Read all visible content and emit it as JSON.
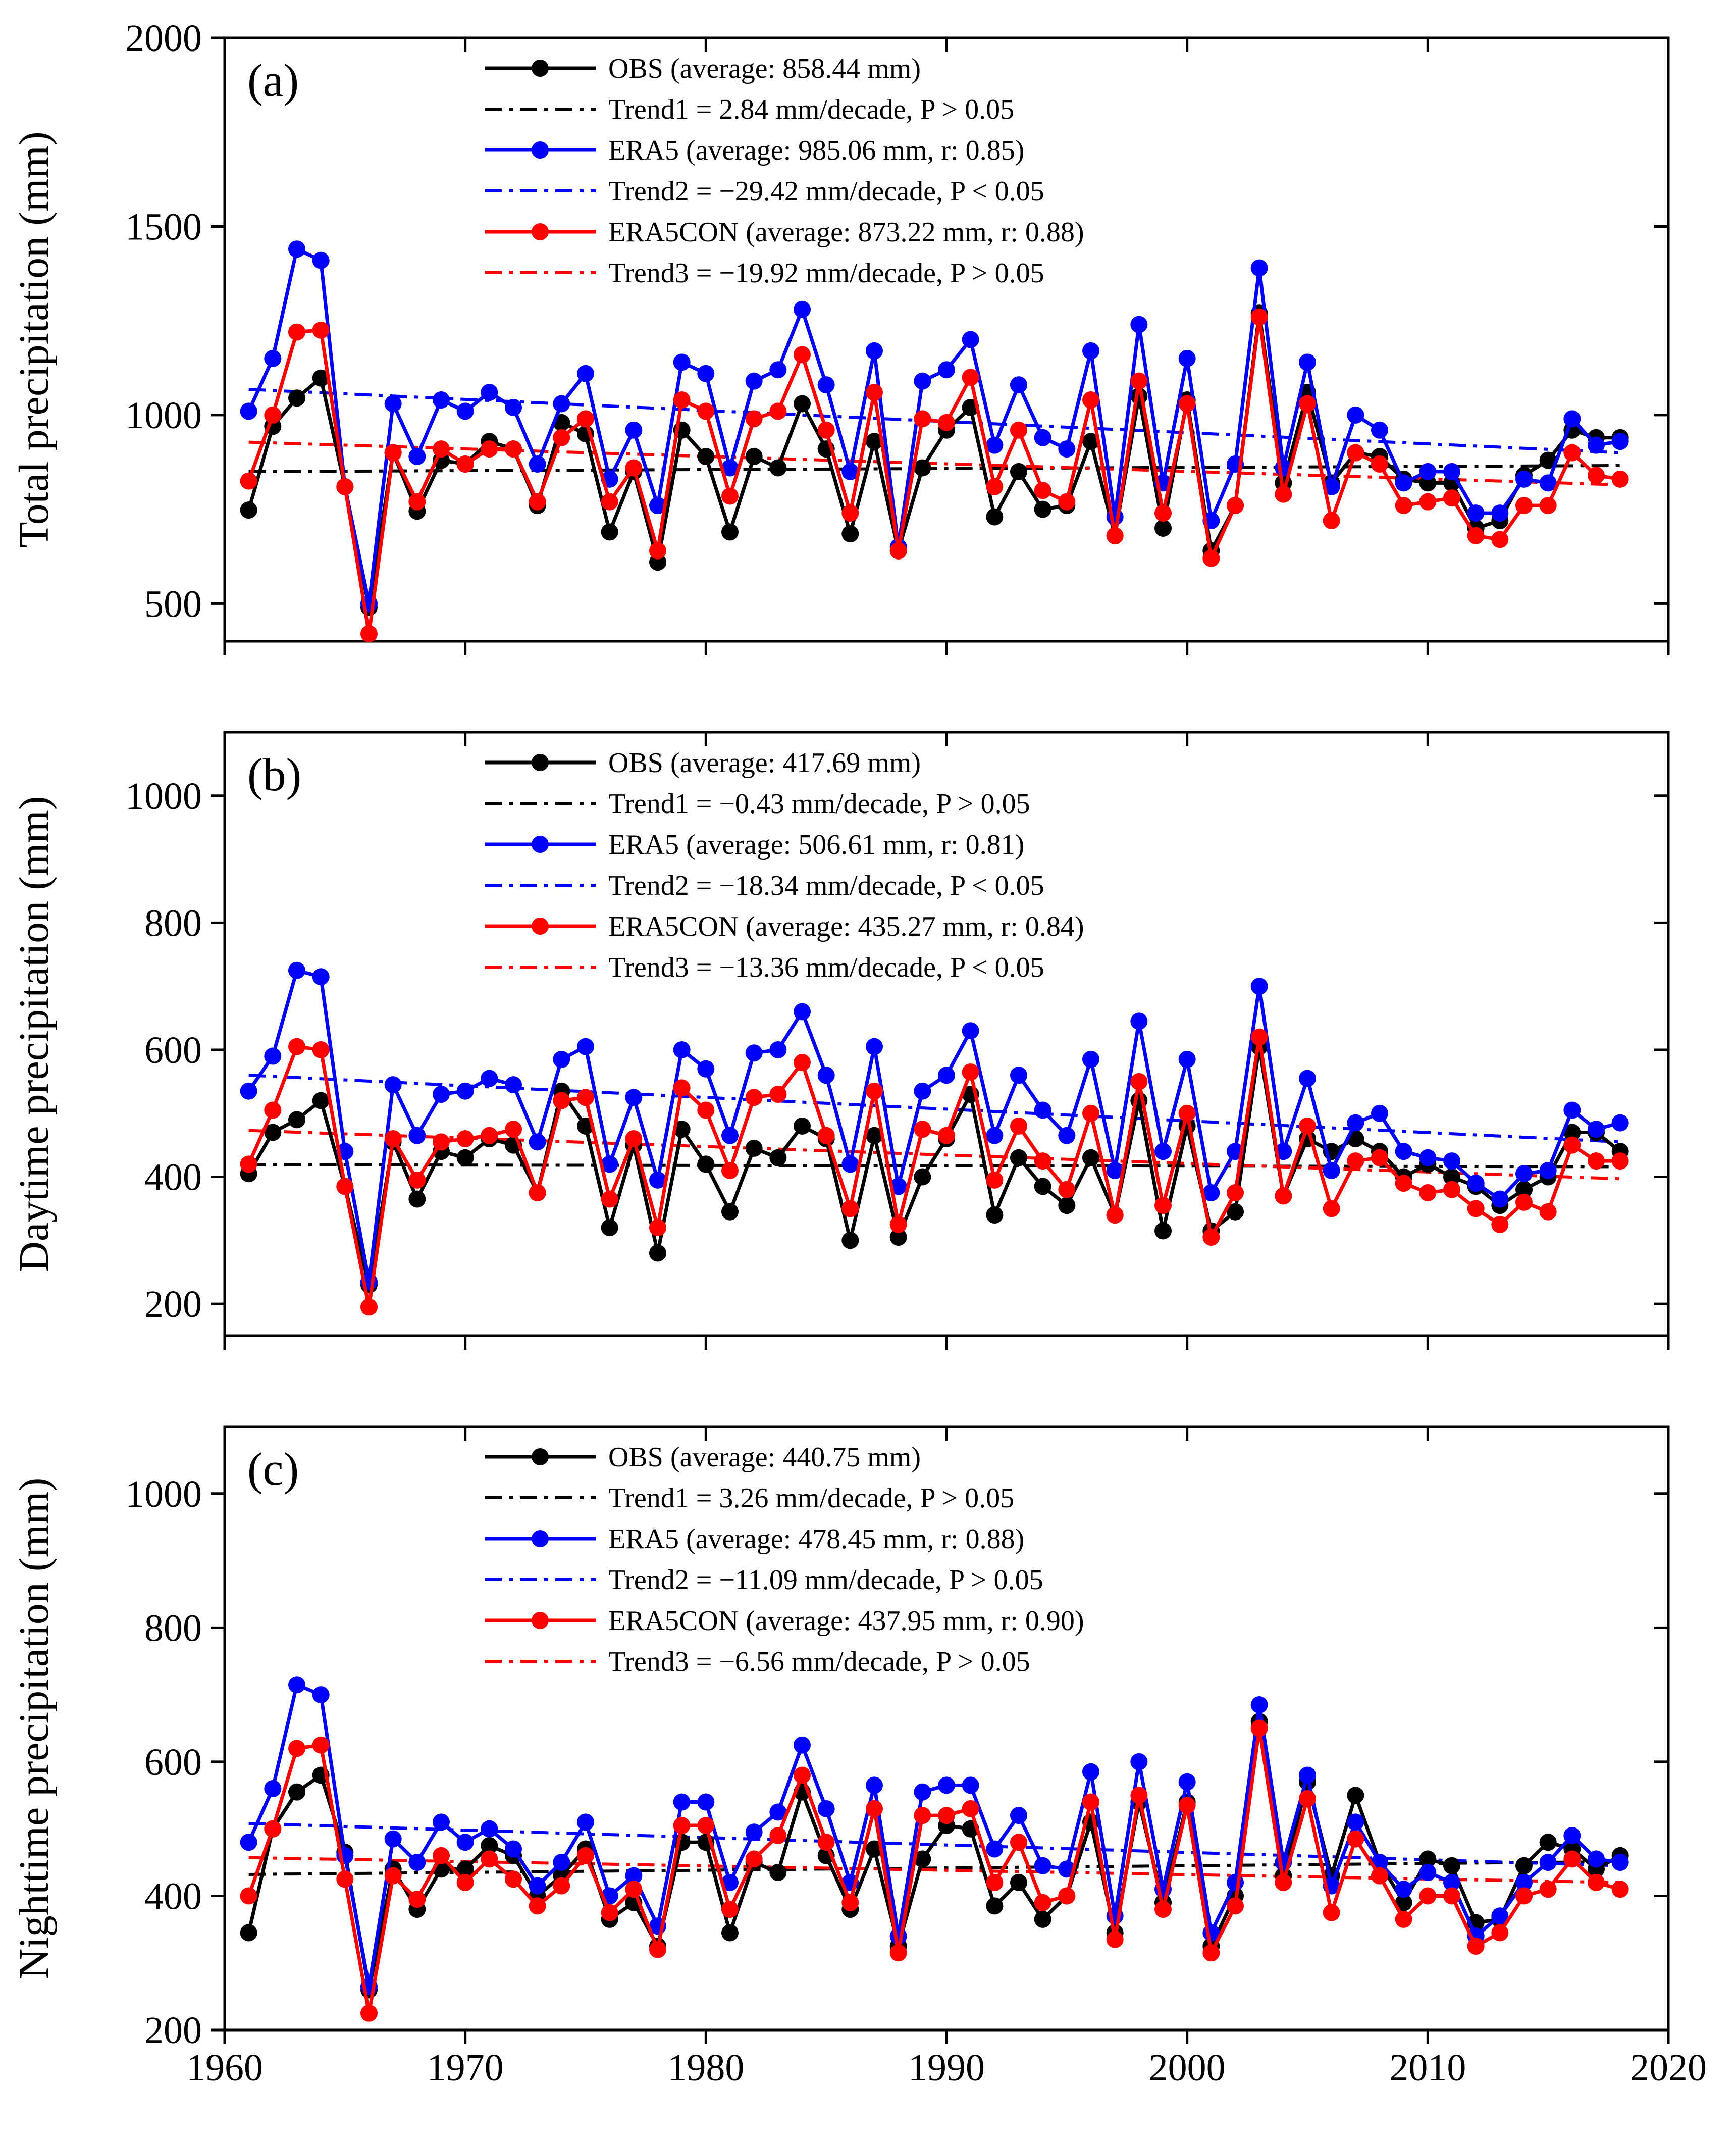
{
  "figure": {
    "xticks": [
      1960,
      1970,
      1980,
      1990,
      2000,
      2010,
      2020
    ],
    "colors": {
      "obs": "#000000",
      "era5": "#0000ff",
      "era5con": "#ff0000"
    }
  },
  "chart_data": [
    {
      "type": "line",
      "panel_label": "(a)",
      "ylabel": "Total precipitation (mm)",
      "xlim": [
        1960,
        2020
      ],
      "ylim": [
        400,
        2000
      ],
      "yticks": [
        500,
        1000,
        1500,
        2000
      ],
      "legend_position": "top",
      "x": [
        1961,
        1962,
        1963,
        1964,
        1965,
        1966,
        1967,
        1968,
        1969,
        1970,
        1971,
        1972,
        1973,
        1974,
        1975,
        1976,
        1977,
        1978,
        1979,
        1980,
        1981,
        1982,
        1983,
        1984,
        1985,
        1986,
        1987,
        1988,
        1989,
        1990,
        1991,
        1992,
        1993,
        1994,
        1995,
        1996,
        1997,
        1998,
        1999,
        2000,
        2001,
        2002,
        2003,
        2004,
        2005,
        2006,
        2007,
        2008,
        2009,
        2010,
        2011,
        2012,
        2013,
        2014,
        2015,
        2016,
        2017,
        2018
      ],
      "series": [
        {
          "name": "OBS (average: 858.44 mm)",
          "color": "#000000",
          "values": [
            748,
            970,
            1045,
            1098,
            810,
            490,
            900,
            745,
            880,
            870,
            930,
            910,
            760,
            980,
            950,
            690,
            850,
            610,
            960,
            890,
            690,
            890,
            860,
            1030,
            910,
            685,
            930,
            640,
            860,
            960,
            1020,
            730,
            850,
            750,
            760,
            930,
            680,
            1050,
            700,
            1040,
            640,
            760,
            1270,
            820,
            1060,
            820,
            900,
            890,
            830,
            820,
            820,
            700,
            720,
            840,
            880,
            960,
            940,
            940
          ]
        },
        {
          "name": "ERA5 (average: 985.06 mm, r: 0.85)",
          "color": "#0000ff",
          "values": [
            1010,
            1150,
            1440,
            1410,
            810,
            500,
            1030,
            890,
            1040,
            1010,
            1060,
            1020,
            870,
            1030,
            1110,
            830,
            960,
            760,
            1140,
            1110,
            860,
            1090,
            1120,
            1280,
            1080,
            850,
            1170,
            650,
            1090,
            1120,
            1200,
            920,
            1080,
            940,
            910,
            1170,
            730,
            1240,
            820,
            1150,
            720,
            870,
            1390,
            860,
            1140,
            810,
            1000,
            960,
            820,
            850,
            850,
            740,
            740,
            830,
            820,
            990,
            920,
            930
          ]
        },
        {
          "name": "ERA5CON (average: 873.22 mm, r: 0.88)",
          "color": "#ff0000",
          "values": [
            825,
            1000,
            1220,
            1225,
            810,
            420,
            900,
            770,
            910,
            870,
            910,
            910,
            770,
            940,
            990,
            770,
            860,
            640,
            1040,
            1010,
            785,
            990,
            1010,
            1160,
            960,
            740,
            1060,
            640,
            990,
            980,
            1100,
            810,
            960,
            800,
            770,
            1040,
            680,
            1090,
            740,
            1030,
            620,
            760,
            1260,
            790,
            1030,
            720,
            900,
            870,
            760,
            770,
            780,
            680,
            670,
            760,
            760,
            900,
            840,
            830
          ]
        }
      ],
      "trends": [
        {
          "name": "Trend1 = 2.84 mm/decade, P > 0.05",
          "color": "#000000",
          "x": [
            1961,
            2018
          ],
          "y": [
            850,
            866
          ]
        },
        {
          "name": "Trend2 = −29.42 mm/decade, P < 0.05",
          "color": "#0000ff",
          "x": [
            1961,
            2018
          ],
          "y": [
            1068,
            900
          ]
        },
        {
          "name": "Trend3 = −19.92 mm/decade, P > 0.05",
          "color": "#ff0000",
          "x": [
            1961,
            2018
          ],
          "y": [
            928,
            815
          ]
        }
      ]
    },
    {
      "type": "line",
      "panel_label": "(b)",
      "ylabel": "Daytime precipitation (mm)",
      "xlim": [
        1960,
        2020
      ],
      "ylim": [
        150,
        1100
      ],
      "yticks": [
        200,
        400,
        600,
        800,
        1000
      ],
      "legend_position": "top",
      "x": [
        1961,
        1962,
        1963,
        1964,
        1965,
        1966,
        1967,
        1968,
        1969,
        1970,
        1971,
        1972,
        1973,
        1974,
        1975,
        1976,
        1977,
        1978,
        1979,
        1980,
        1981,
        1982,
        1983,
        1984,
        1985,
        1986,
        1987,
        1988,
        1989,
        1990,
        1991,
        1992,
        1993,
        1994,
        1995,
        1996,
        1997,
        1998,
        1999,
        2000,
        2001,
        2002,
        2003,
        2004,
        2005,
        2006,
        2007,
        2008,
        2009,
        2010,
        2011,
        2012,
        2013,
        2014,
        2015,
        2016,
        2017,
        2018
      ],
      "series": [
        {
          "name": "OBS (average: 417.69 mm)",
          "color": "#000000",
          "values": [
            405,
            470,
            490,
            520,
            385,
            230,
            455,
            365,
            440,
            430,
            460,
            450,
            375,
            535,
            480,
            320,
            450,
            280,
            475,
            420,
            345,
            445,
            430,
            480,
            460,
            300,
            465,
            305,
            400,
            460,
            530,
            340,
            430,
            385,
            355,
            430,
            340,
            520,
            315,
            480,
            315,
            345,
            605,
            370,
            460,
            440,
            460,
            440,
            400,
            420,
            400,
            385,
            355,
            380,
            400,
            470,
            470,
            440
          ]
        },
        {
          "name": "ERA5 (average: 506.61 mm, r: 0.81)",
          "color": "#0000ff",
          "values": [
            535,
            590,
            725,
            715,
            440,
            235,
            545,
            465,
            530,
            535,
            555,
            545,
            455,
            585,
            605,
            420,
            525,
            395,
            600,
            570,
            465,
            595,
            600,
            660,
            560,
            420,
            605,
            385,
            535,
            560,
            630,
            465,
            560,
            505,
            465,
            585,
            410,
            645,
            440,
            585,
            375,
            440,
            700,
            440,
            555,
            410,
            485,
            500,
            440,
            430,
            425,
            390,
            365,
            405,
            410,
            505,
            475,
            485
          ]
        },
        {
          "name": "ERA5CON (average: 435.27 mm, r: 0.84)",
          "color": "#ff0000",
          "values": [
            420,
            505,
            605,
            600,
            385,
            195,
            460,
            395,
            455,
            460,
            465,
            475,
            375,
            520,
            525,
            365,
            460,
            320,
            540,
            505,
            410,
            525,
            530,
            580,
            465,
            350,
            535,
            325,
            475,
            465,
            565,
            395,
            480,
            425,
            380,
            500,
            340,
            550,
            355,
            500,
            305,
            375,
            620,
            370,
            480,
            350,
            425,
            430,
            390,
            375,
            380,
            350,
            325,
            360,
            345,
            450,
            425,
            425
          ]
        }
      ],
      "trends": [
        {
          "name": "Trend1 = −0.43 mm/decade, P > 0.05",
          "color": "#000000",
          "x": [
            1961,
            2018
          ],
          "y": [
            419,
            416
          ]
        },
        {
          "name": "Trend2 = −18.34 mm/decade, P < 0.05",
          "color": "#0000ff",
          "x": [
            1961,
            2018
          ],
          "y": [
            560,
            455
          ]
        },
        {
          "name": "Trend3 = −13.36 mm/decade, P < 0.05",
          "color": "#ff0000",
          "x": [
            1961,
            2018
          ],
          "y": [
            473,
            397
          ]
        }
      ]
    },
    {
      "type": "line",
      "panel_label": "(c)",
      "ylabel": "Nighttime precipitation (mm)",
      "xlim": [
        1960,
        2020
      ],
      "ylim": [
        200,
        1100
      ],
      "yticks": [
        200,
        400,
        600,
        800,
        1000
      ],
      "xticks": [
        1960,
        1970,
        1980,
        1990,
        2000,
        2010,
        2020
      ],
      "legend_position": "top",
      "x": [
        1961,
        1962,
        1963,
        1964,
        1965,
        1966,
        1967,
        1968,
        1969,
        1970,
        1971,
        1972,
        1973,
        1974,
        1975,
        1976,
        1977,
        1978,
        1979,
        1980,
        1981,
        1982,
        1983,
        1984,
        1985,
        1986,
        1987,
        1988,
        1989,
        1990,
        1991,
        1992,
        1993,
        1994,
        1995,
        1996,
        1997,
        1998,
        1999,
        2000,
        2001,
        2002,
        2003,
        2004,
        2005,
        2006,
        2007,
        2008,
        2009,
        2010,
        2011,
        2012,
        2013,
        2014,
        2015,
        2016,
        2017,
        2018
      ],
      "series": [
        {
          "name": "OBS (average: 440.75 mm)",
          "color": "#000000",
          "values": [
            345,
            500,
            555,
            580,
            465,
            260,
            440,
            380,
            440,
            440,
            475,
            460,
            400,
            430,
            470,
            365,
            390,
            325,
            480,
            480,
            345,
            450,
            435,
            555,
            460,
            380,
            470,
            325,
            455,
            505,
            500,
            385,
            420,
            365,
            400,
            510,
            345,
            540,
            390,
            540,
            325,
            400,
            660,
            430,
            570,
            430,
            550,
            450,
            390,
            455,
            445,
            360,
            365,
            445,
            480,
            470,
            440,
            460
          ]
        },
        {
          "name": "ERA5 (average: 478.45 mm, r: 0.88)",
          "color": "#0000ff",
          "values": [
            480,
            560,
            715,
            700,
            460,
            265,
            485,
            450,
            510,
            480,
            500,
            470,
            415,
            450,
            510,
            400,
            430,
            355,
            540,
            540,
            420,
            495,
            525,
            625,
            530,
            420,
            565,
            340,
            555,
            565,
            565,
            470,
            520,
            445,
            440,
            585,
            370,
            600,
            410,
            570,
            345,
            420,
            685,
            450,
            580,
            415,
            510,
            450,
            410,
            435,
            420,
            340,
            370,
            420,
            450,
            490,
            455,
            450
          ]
        },
        {
          "name": "ERA5CON (average: 437.95 mm, r: 0.90)",
          "color": "#ff0000",
          "values": [
            400,
            500,
            620,
            625,
            425,
            225,
            430,
            395,
            460,
            420,
            455,
            425,
            385,
            415,
            460,
            375,
            410,
            320,
            505,
            505,
            380,
            455,
            490,
            580,
            480,
            390,
            530,
            315,
            520,
            520,
            530,
            420,
            480,
            390,
            400,
            540,
            335,
            550,
            380,
            535,
            315,
            385,
            650,
            420,
            545,
            375,
            485,
            430,
            365,
            400,
            400,
            325,
            345,
            400,
            410,
            455,
            420,
            410
          ]
        }
      ],
      "trends": [
        {
          "name": "Trend1 = 3.26 mm/decade, P > 0.05",
          "color": "#000000",
          "x": [
            1961,
            2018
          ],
          "y": [
            432,
            451
          ]
        },
        {
          "name": "Trend2 = −11.09 mm/decade, P > 0.05",
          "color": "#0000ff",
          "x": [
            1961,
            2018
          ],
          "y": [
            508,
            445
          ]
        },
        {
          "name": "Trend3 = −6.56 mm/decade, P > 0.05",
          "color": "#ff0000",
          "x": [
            1961,
            2018
          ],
          "y": [
            457,
            420
          ]
        }
      ]
    }
  ]
}
